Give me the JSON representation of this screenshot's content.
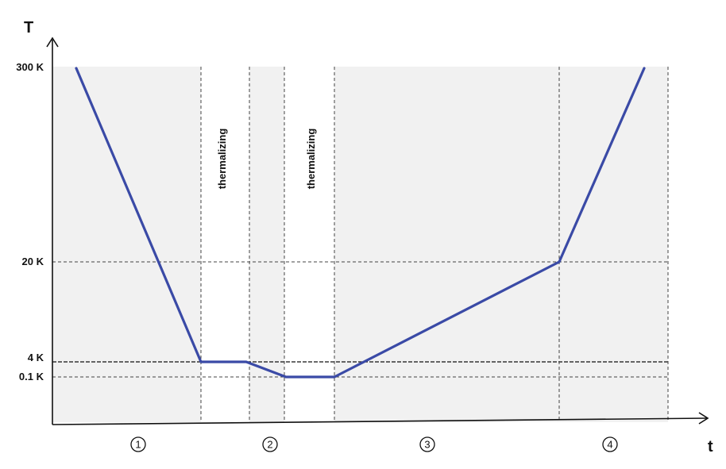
{
  "chart_data": {
    "type": "line",
    "xlabel": "t",
    "ylabel": "T",
    "y_ticks": [
      "300 K",
      "20 K",
      "4 K",
      "0.1 K"
    ],
    "grid": "dashed reference lines at tick levels and phase boundaries",
    "colors": {
      "line": "#3a4aa6",
      "panel": "#f1f1f1",
      "grid": "#444444"
    },
    "annotations": [
      "thermalizing",
      "thermalizing"
    ],
    "phases": [
      "1",
      "2",
      "3",
      "4"
    ],
    "series": [
      {
        "values": [
          "300 K",
          "4 K",
          "4 K",
          "0.1 K",
          "0.1 K",
          "20 K",
          "300 K"
        ]
      }
    ]
  }
}
